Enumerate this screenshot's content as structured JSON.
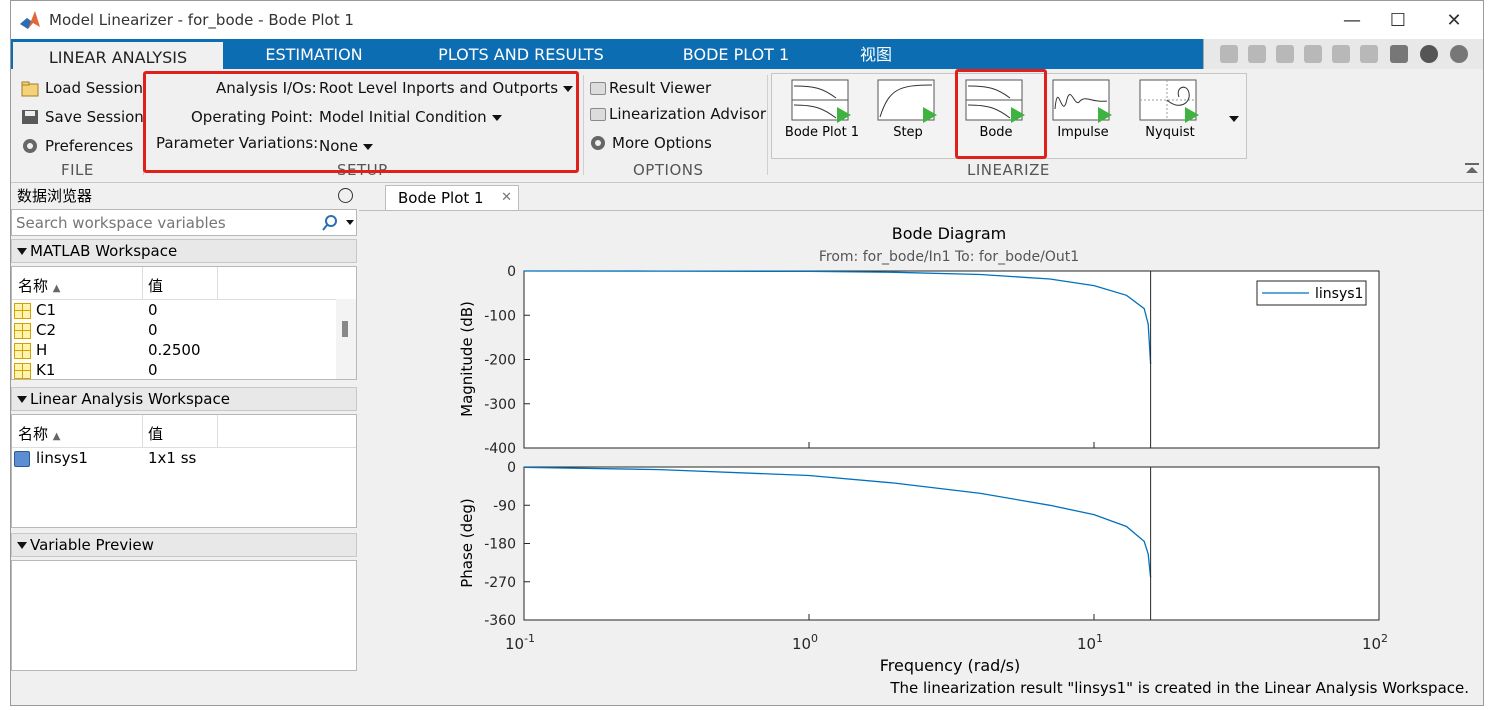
{
  "window": {
    "title": "Model Linearizer - for_bode - Bode Plot 1",
    "minimize": "—",
    "maximize": "☐",
    "close": "✕"
  },
  "tabs": [
    {
      "label": "LINEAR ANALYSIS",
      "active": true
    },
    {
      "label": "ESTIMATION"
    },
    {
      "label": "PLOTS AND RESULTS"
    },
    {
      "label": "BODE PLOT 1"
    },
    {
      "label": "视图"
    }
  ],
  "file": {
    "load": "Load Session",
    "save": "Save Session",
    "prefs": "Preferences",
    "section": "FILE"
  },
  "setup": {
    "io_label": "Analysis I/Os:",
    "io_value": "Root Level Inports and Outports",
    "op_label": "Operating Point:",
    "op_value": "Model Initial Condition",
    "pv_label": "Parameter Variations:",
    "pv_value": "None",
    "section": "SETUP"
  },
  "options": {
    "result_viewer": "Result Viewer",
    "advisor": "Linearization Advisor",
    "more": "More Options",
    "section": "OPTIONS"
  },
  "linearize": {
    "items": [
      "Bode Plot 1",
      "Step",
      "Bode",
      "Impulse",
      "Nyquist"
    ],
    "section": "LINEARIZE"
  },
  "data_browser": {
    "title": "数据浏览器",
    "search_placeholder": "Search workspace variables",
    "matlab_ws": {
      "title": "MATLAB Workspace",
      "col_name": "名称",
      "col_value": "值",
      "rows": [
        {
          "name": "C1",
          "value": "0"
        },
        {
          "name": "C2",
          "value": "0"
        },
        {
          "name": "H",
          "value": "0.2500"
        },
        {
          "name": "K1",
          "value": "0"
        }
      ]
    },
    "lin_ws": {
      "title": "Linear Analysis Workspace",
      "col_name": "名称",
      "col_value": "值",
      "rows": [
        {
          "name": "linsys1",
          "value": "1x1 ss"
        }
      ]
    },
    "preview": {
      "title": "Variable Preview"
    }
  },
  "doc_tab": {
    "label": "Bode Plot 1",
    "close": "✕"
  },
  "chart_data": {
    "type": "line",
    "title": "Bode Diagram",
    "subtitle": "From: for_bode/In1  To: for_bode/Out1",
    "xlabel": "Frequency  (rad/s)",
    "xscale": "log",
    "xlim": [
      0.1,
      100
    ],
    "x_ticks": [
      {
        "base": "10",
        "exp": "-1"
      },
      {
        "base": "10",
        "exp": "0"
      },
      {
        "base": "10",
        "exp": "1"
      },
      {
        "base": "10",
        "exp": "2"
      }
    ],
    "cutoff_frequency": 15.8,
    "legend": {
      "label": "linsys1",
      "placement": "top-right"
    },
    "line_color": "#0072bd",
    "magnitude": {
      "ylabel": "Magnitude (dB)",
      "ylim": [
        -400,
        0
      ],
      "yticks": [
        "0",
        "-100",
        "-200",
        "-300",
        "-400"
      ],
      "x": [
        0.1,
        0.3,
        1,
        2,
        4,
        7,
        10,
        13,
        15,
        15.5,
        15.8
      ],
      "y": [
        0,
        -0.2,
        -1,
        -3,
        -8,
        -18,
        -33,
        -55,
        -85,
        -120,
        -210
      ]
    },
    "phase": {
      "ylabel": "Phase (deg)",
      "ylim": [
        -360,
        0
      ],
      "yticks": [
        "0",
        "-90",
        "-180",
        "-270",
        "-360"
      ],
      "x": [
        0.1,
        0.3,
        1,
        2,
        4,
        7,
        10,
        13,
        15,
        15.5,
        15.8
      ],
      "y": [
        -1,
        -6,
        -20,
        -38,
        -62,
        -90,
        -112,
        -140,
        -175,
        -205,
        -260
      ]
    }
  },
  "status": {
    "message": "The linearization result \"linsys1\" is created in the Linear Analysis Workspace."
  }
}
